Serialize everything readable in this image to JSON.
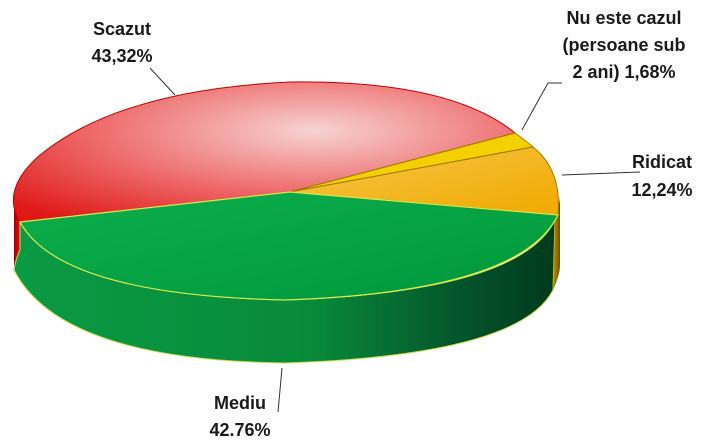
{
  "chart_data": {
    "type": "pie",
    "title": "",
    "style": "3d-tilted",
    "slices": [
      {
        "label": "Scazut",
        "value": 43.32,
        "value_text": "43,32%",
        "color": "#e8202a"
      },
      {
        "label_lines": [
          "Nu este cazul",
          "(persoane sub",
          "2 ani) 1,68%"
        ],
        "label": "Nu este cazul (persoane sub 2 ani)",
        "value": 1.68,
        "value_text": "1,68%",
        "color": "#f5b800"
      },
      {
        "label": "Ridicat",
        "value": 12.24,
        "value_text": "12,24%",
        "color": "#f5b800"
      },
      {
        "label": "Mediu",
        "value": 42.76,
        "value_text": "42.76%",
        "color": "#00a040"
      }
    ]
  }
}
